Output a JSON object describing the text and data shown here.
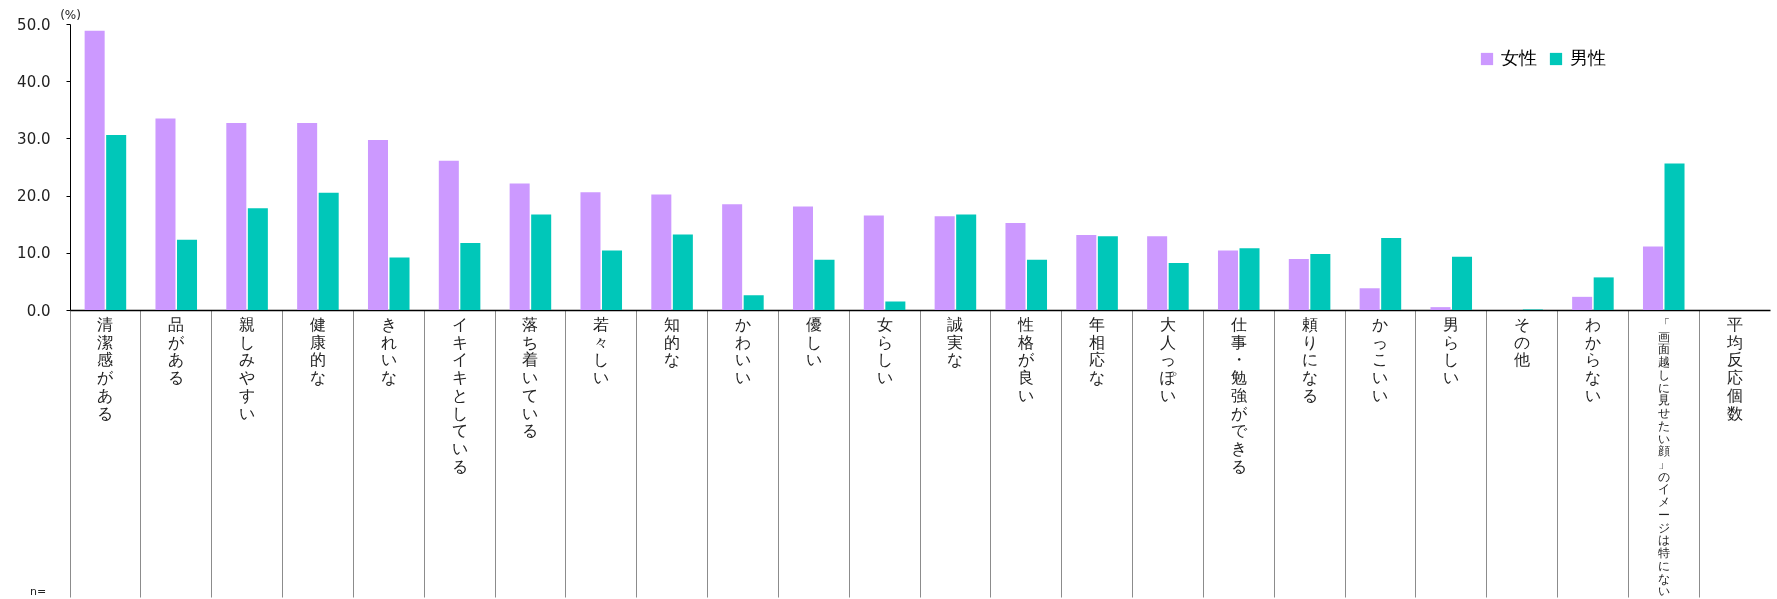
{
  "chart_data": {
    "type": "bar",
    "ylabel": "(%)",
    "categories": [
      "清潔感がある",
      "品がある",
      "親しみやすい",
      "健康的な",
      "きれいな",
      "イキイキとしている",
      "落ち着いている",
      "若々しい",
      "知的な",
      "かわいい",
      "優しい",
      "女らしい",
      "誠実な",
      "性格が良い",
      "年相応な",
      "大人っぽい",
      "仕事・勉強ができる",
      "頼りになる",
      "かっこいい",
      "男らしい",
      "その他",
      "わからない",
      "「画面越しに見せたい顔」のイメージは特にない",
      "平均反応個数"
    ],
    "series": [
      {
        "name": "女性",
        "color": "#cc99ff",
        "values": [
          48.8,
          33.5,
          32.7,
          32.7,
          29.7,
          26.1,
          22.1,
          20.6,
          20.2,
          18.5,
          18.1,
          16.5,
          16.4,
          15.2,
          13.1,
          12.9,
          10.4,
          8.9,
          3.8,
          0.5,
          0,
          2.3,
          11.1,
          null
        ]
      },
      {
        "name": "男性",
        "color": "#00c7b9",
        "values": [
          30.6,
          12.3,
          17.8,
          20.5,
          9.2,
          11.7,
          16.7,
          10.4,
          13.2,
          2.6,
          8.8,
          1.5,
          16.7,
          8.8,
          12.9,
          8.2,
          10.8,
          9.8,
          12.6,
          9.3,
          0.1,
          5.7,
          25.6,
          null
        ]
      }
    ],
    "ylim": [
      0,
      50
    ],
    "yticks": [
      {
        "value": 0,
        "label": "0.0"
      },
      {
        "value": 10,
        "label": "10.0"
      },
      {
        "value": 20,
        "label": "20.0"
      },
      {
        "value": 30,
        "label": "30.0"
      },
      {
        "value": 40,
        "label": "40.0"
      },
      {
        "value": 50,
        "label": "50.0"
      }
    ],
    "legend": "top right",
    "annotations": [
      "n="
    ]
  }
}
